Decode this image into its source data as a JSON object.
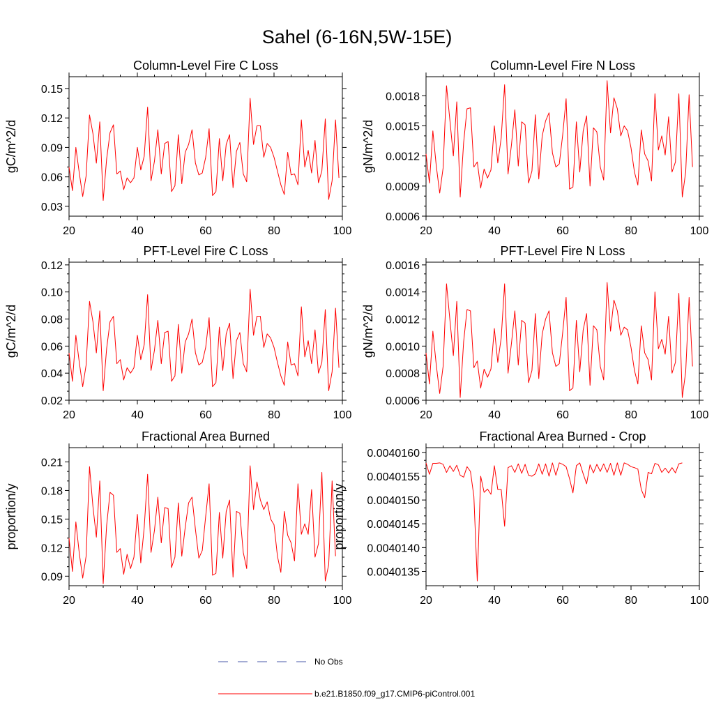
{
  "page": {
    "title": "Sahel (6-16N,5W-15E)"
  },
  "colors": {
    "model": "#ff0000",
    "obs": "#4a5aa8",
    "axis": "#000000"
  },
  "legend": {
    "position": "bottom-center",
    "obs_label": "No Obs",
    "model_label": "b.e21.B1850.f09_g17.CMIP6-piControl.001"
  },
  "chart_data": [
    {
      "type": "line",
      "title": "Column-Level Fire C Loss",
      "xlabel": "",
      "ylabel": "gC/m^2/d",
      "xlim": [
        20,
        100
      ],
      "ylim": [
        0.02,
        0.162
      ],
      "xticks": [
        20,
        40,
        60,
        80,
        100
      ],
      "xtick_labels": [
        "20",
        "40",
        "60",
        "80",
        "100"
      ],
      "yticks": [
        0.03,
        0.06,
        0.09,
        0.12,
        0.15
      ],
      "ytick_labels": [
        "0.03",
        "0.06",
        "0.09",
        "0.12",
        "0.15"
      ],
      "x_start": 20,
      "x_step": 1,
      "series": [
        {
          "name": "b.e21.B1850.f09_g17.CMIP6-piControl.001",
          "values": [
            0.07,
            0.046,
            0.09,
            0.064,
            0.04,
            0.061,
            0.123,
            0.104,
            0.074,
            0.116,
            0.036,
            0.078,
            0.105,
            0.113,
            0.063,
            0.066,
            0.047,
            0.059,
            0.054,
            0.059,
            0.09,
            0.067,
            0.081,
            0.131,
            0.056,
            0.076,
            0.108,
            0.063,
            0.094,
            0.096,
            0.045,
            0.051,
            0.103,
            0.053,
            0.085,
            0.093,
            0.108,
            0.074,
            0.062,
            0.064,
            0.08,
            0.109,
            0.041,
            0.045,
            0.099,
            0.056,
            0.093,
            0.103,
            0.049,
            0.086,
            0.095,
            0.063,
            0.055,
            0.14,
            0.093,
            0.112,
            0.112,
            0.08,
            0.094,
            0.09,
            0.08,
            0.066,
            0.052,
            0.042,
            0.085,
            0.062,
            0.063,
            0.052,
            0.118,
            0.07,
            0.087,
            0.064,
            0.097,
            0.054,
            0.066,
            0.119,
            0.037,
            0.056,
            0.118,
            0.059
          ]
        }
      ]
    },
    {
      "type": "line",
      "title": "Column-Level Fire N Loss",
      "xlabel": "",
      "ylabel": "gN/m^2/d",
      "xlim": [
        20,
        100
      ],
      "ylim": [
        0.0006,
        0.00199
      ],
      "xticks": [
        20,
        40,
        60,
        80,
        100
      ],
      "xtick_labels": [
        "20",
        "40",
        "60",
        "80",
        "100"
      ],
      "yticks": [
        0.0006,
        0.0009,
        0.0012,
        0.0015,
        0.0018
      ],
      "ytick_labels": [
        "0.0006",
        "0.0009",
        "0.0012",
        "0.0015",
        "0.0018"
      ],
      "x_start": 20,
      "x_step": 1,
      "series": [
        {
          "name": "b.e21.B1850.f09_g17.CMIP6-piControl.001",
          "values": [
            0.00122,
            0.00093,
            0.00145,
            0.0011,
            0.00083,
            0.00108,
            0.0019,
            0.00155,
            0.0012,
            0.00174,
            0.00079,
            0.00133,
            0.00167,
            0.00168,
            0.00109,
            0.00114,
            0.00088,
            0.00107,
            0.00098,
            0.00106,
            0.0015,
            0.00113,
            0.00138,
            0.00191,
            0.00102,
            0.00131,
            0.00166,
            0.0011,
            0.00154,
            0.00151,
            0.00093,
            0.00105,
            0.00161,
            0.00097,
            0.0014,
            0.00155,
            0.00163,
            0.00123,
            0.00109,
            0.00112,
            0.00141,
            0.00177,
            0.00087,
            0.00089,
            0.00154,
            0.00104,
            0.00145,
            0.0016,
            0.0009,
            0.00148,
            0.00144,
            0.00109,
            0.00096,
            0.00195,
            0.00143,
            0.00178,
            0.00167,
            0.0014,
            0.0015,
            0.00145,
            0.00128,
            0.00104,
            0.00091,
            0.00146,
            0.00122,
            0.00115,
            0.00095,
            0.00182,
            0.00126,
            0.0014,
            0.00121,
            0.00159,
            0.00104,
            0.00114,
            0.00182,
            0.00079,
            0.00104,
            0.00181,
            0.00109
          ]
        }
      ]
    },
    {
      "type": "line",
      "title": "PFT-Level Fire C Loss",
      "xlabel": "",
      "ylabel": "gC/m^2/d",
      "xlim": [
        20,
        100
      ],
      "ylim": [
        0.02,
        0.122
      ],
      "xticks": [
        20,
        40,
        60,
        80,
        100
      ],
      "xtick_labels": [
        "20",
        "40",
        "60",
        "80",
        "100"
      ],
      "yticks": [
        0.02,
        0.04,
        0.06,
        0.08,
        0.1,
        0.12
      ],
      "ytick_labels": [
        "0.02",
        "0.04",
        "0.06",
        "0.08",
        "0.10",
        "0.12"
      ],
      "x_start": 20,
      "x_step": 1,
      "series": [
        {
          "name": "b.e21.B1850.f09_g17.CMIP6-piControl.001",
          "values": [
            0.055,
            0.034,
            0.068,
            0.048,
            0.03,
            0.046,
            0.093,
            0.078,
            0.055,
            0.086,
            0.027,
            0.058,
            0.078,
            0.082,
            0.047,
            0.05,
            0.035,
            0.044,
            0.04,
            0.044,
            0.068,
            0.05,
            0.061,
            0.098,
            0.042,
            0.057,
            0.079,
            0.047,
            0.07,
            0.071,
            0.034,
            0.038,
            0.076,
            0.04,
            0.063,
            0.069,
            0.08,
            0.055,
            0.046,
            0.048,
            0.059,
            0.081,
            0.03,
            0.033,
            0.074,
            0.042,
            0.069,
            0.077,
            0.036,
            0.064,
            0.07,
            0.047,
            0.041,
            0.102,
            0.068,
            0.082,
            0.082,
            0.059,
            0.069,
            0.066,
            0.059,
            0.048,
            0.038,
            0.031,
            0.063,
            0.046,
            0.047,
            0.038,
            0.089,
            0.052,
            0.064,
            0.047,
            0.072,
            0.04,
            0.048,
            0.087,
            0.027,
            0.041,
            0.088,
            0.044
          ]
        }
      ]
    },
    {
      "type": "line",
      "title": "PFT-Level Fire N Loss",
      "xlabel": "",
      "ylabel": "gN/m^2/d",
      "xlim": [
        20,
        100
      ],
      "ylim": [
        0.0006,
        0.00162
      ],
      "xticks": [
        20,
        40,
        60,
        80,
        100
      ],
      "xtick_labels": [
        "20",
        "40",
        "60",
        "80",
        "100"
      ],
      "yticks": [
        0.0006,
        0.0008,
        0.001,
        0.0012,
        0.0014,
        0.0016
      ],
      "ytick_labels": [
        "0.0006",
        "0.0008",
        "0.0010",
        "0.0012",
        "0.0014",
        "0.0016"
      ],
      "x_start": 20,
      "x_step": 1,
      "series": [
        {
          "name": "b.e21.B1850.f09_g17.CMIP6-piControl.001",
          "values": [
            0.00095,
            0.00072,
            0.00111,
            0.00086,
            0.00065,
            0.00085,
            0.00146,
            0.00119,
            0.00093,
            0.00133,
            0.00062,
            0.00103,
            0.00127,
            0.00126,
            0.00084,
            0.00089,
            0.00069,
            0.00083,
            0.00077,
            0.00083,
            0.00113,
            0.00088,
            0.00106,
            0.00146,
            0.0008,
            0.00102,
            0.00126,
            0.00086,
            0.00119,
            0.00117,
            0.00073,
            0.00082,
            0.00124,
            0.00076,
            0.00109,
            0.0012,
            0.00126,
            0.00095,
            0.00085,
            0.00087,
            0.0011,
            0.00136,
            0.00067,
            0.00069,
            0.00119,
            0.00081,
            0.00112,
            0.00124,
            0.00071,
            0.00115,
            0.00112,
            0.00085,
            0.00075,
            0.00147,
            0.00111,
            0.00134,
            0.00126,
            0.00108,
            0.00114,
            0.00112,
            0.00099,
            0.00082,
            0.00072,
            0.00115,
            0.00095,
            0.0009,
            0.00075,
            0.0014,
            0.00098,
            0.00105,
            0.00094,
            0.00122,
            0.0008,
            0.00088,
            0.00139,
            0.00062,
            0.00081,
            0.00136,
            0.00085
          ]
        }
      ]
    },
    {
      "type": "line",
      "title": "Fractional Area Burned",
      "xlabel": "",
      "ylabel": "proportion/y",
      "xlim": [
        20,
        100
      ],
      "ylim": [
        0.08,
        0.225
      ],
      "xticks": [
        20,
        40,
        60,
        80,
        100
      ],
      "xtick_labels": [
        "20",
        "40",
        "60",
        "80",
        "100"
      ],
      "yticks": [
        0.09,
        0.12,
        0.15,
        0.18,
        0.21
      ],
      "ytick_labels": [
        "0.09",
        "0.12",
        "0.15",
        "0.18",
        "0.21"
      ],
      "x_start": 20,
      "x_step": 1,
      "series": [
        {
          "name": "b.e21.B1850.f09_g17.CMIP6-piControl.001",
          "values": [
            0.13,
            0.095,
            0.147,
            0.114,
            0.088,
            0.111,
            0.205,
            0.163,
            0.131,
            0.19,
            0.082,
            0.143,
            0.178,
            0.175,
            0.115,
            0.119,
            0.092,
            0.113,
            0.098,
            0.11,
            0.155,
            0.104,
            0.141,
            0.197,
            0.115,
            0.138,
            0.173,
            0.125,
            0.162,
            0.161,
            0.099,
            0.11,
            0.167,
            0.111,
            0.141,
            0.167,
            0.173,
            0.139,
            0.109,
            0.117,
            0.153,
            0.187,
            0.091,
            0.093,
            0.157,
            0.109,
            0.158,
            0.17,
            0.089,
            0.158,
            0.156,
            0.115,
            0.098,
            0.206,
            0.16,
            0.189,
            0.17,
            0.16,
            0.168,
            0.15,
            0.144,
            0.111,
            0.094,
            0.158,
            0.133,
            0.125,
            0.106,
            0.187,
            0.134,
            0.145,
            0.134,
            0.181,
            0.11,
            0.124,
            0.199,
            0.085,
            0.102,
            0.19,
            0.111
          ]
        }
      ]
    },
    {
      "type": "line",
      "title": "Fractional Area Burned - Crop",
      "xlabel": "",
      "ylabel": "proportion/y",
      "xlim": [
        20,
        100
      ],
      "ylim": [
        0.0040132,
        0.0040161
      ],
      "xticks": [
        20,
        40,
        60,
        80,
        100
      ],
      "xtick_labels": [
        "20",
        "40",
        "60",
        "80",
        "100"
      ],
      "yticks": [
        0.0040135,
        0.004014,
        0.0040145,
        0.004015,
        0.0040155,
        0.004016
      ],
      "ytick_labels": [
        "0.0040135",
        "0.0040140",
        "0.0040145",
        "0.0040150",
        "0.0040155",
        "0.0040160"
      ],
      "x_start": 20,
      "x_step": 1,
      "series": [
        {
          "name": "b.e21.B1850.f09_g17.CMIP6-piControl.001",
          "values": [
            0.00401578,
            0.00401554,
            0.00401577,
            0.00401577,
            0.00401578,
            0.00401575,
            0.00401558,
            0.00401572,
            0.0040156,
            0.00401573,
            0.00401552,
            0.00401548,
            0.0040157,
            0.0040156,
            0.00401508,
            0.0040133,
            0.0040155,
            0.00401516,
            0.00401523,
            0.00401512,
            0.00401572,
            0.00401522,
            0.00401522,
            0.00401445,
            0.00401568,
            0.00401572,
            0.00401558,
            0.00401576,
            0.00401556,
            0.00401575,
            0.00401552,
            0.0040155,
            0.00401555,
            0.00401576,
            0.00401554,
            0.00401576,
            0.0040155,
            0.00401578,
            0.00401552,
            0.00401578,
            0.00401575,
            0.0040157,
            0.00401545,
            0.00401515,
            0.00401572,
            0.00401578,
            0.00401555,
            0.00401534,
            0.00401574,
            0.00401557,
            0.00401575,
            0.0040156,
            0.00401576,
            0.00401558,
            0.00401577,
            0.00401552,
            0.00401578,
            0.00401552,
            0.00401578,
            0.00401575,
            0.0040157,
            0.00401568,
            0.00401565,
            0.00401522,
            0.00401505,
            0.00401558,
            0.00401555,
            0.00401577,
            0.00401574,
            0.00401558,
            0.00401567,
            0.00401557,
            0.00401568,
            0.00401557,
            0.00401576,
            0.00401578
          ]
        }
      ]
    }
  ]
}
